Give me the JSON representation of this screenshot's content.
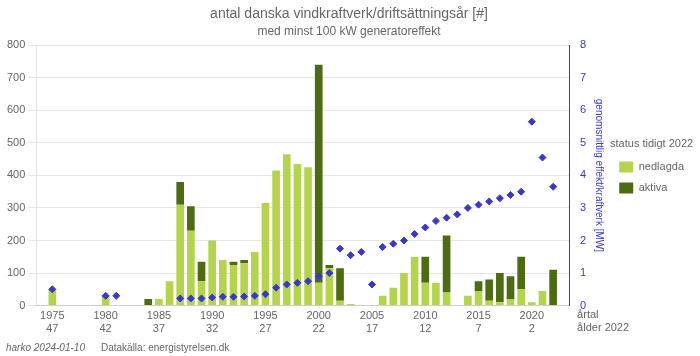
{
  "chart_data": {
    "type": "bar",
    "title": "antal danska vindkraftverk/driftsättningsår [#]",
    "subtitle": "med minst 100 kW generatoreffekt",
    "y2label": "genomsnittlig effekt/kraftverk [MW]",
    "legend_title": "status tidigt 2022",
    "annotations": [
      "årtal",
      "ålder 2022"
    ],
    "footer": [
      "harko 2024-01-10",
      "Datakälla: energistyrelsen.dk"
    ],
    "x": [
      1975,
      1977,
      1979,
      1980,
      1981,
      1984,
      1985,
      1986,
      1987,
      1988,
      1989,
      1990,
      1991,
      1992,
      1993,
      1994,
      1995,
      1996,
      1997,
      1998,
      1999,
      2000,
      2001,
      2002,
      2003,
      2004,
      2005,
      2006,
      2007,
      2008,
      2009,
      2010,
      2011,
      2012,
      2013,
      2014,
      2015,
      2016,
      2017,
      2018,
      2019,
      2020,
      2021,
      2022
    ],
    "series": [
      {
        "name": "nedlagda",
        "color": "#b5d44e",
        "values": [
          50,
          0,
          0,
          30,
          0,
          0,
          20,
          75,
          310,
          230,
          75,
          200,
          140,
          125,
          130,
          165,
          315,
          415,
          465,
          435,
          425,
          70,
          115,
          15,
          5,
          0,
          0,
          30,
          55,
          100,
          150,
          70,
          70,
          40,
          0,
          30,
          45,
          15,
          10,
          20,
          50,
          10,
          45,
          0
        ]
      },
      {
        "name": "aktiva",
        "color": "#4d6b12",
        "values": [
          0,
          0,
          0,
          0,
          0,
          20,
          0,
          0,
          70,
          75,
          60,
          0,
          0,
          10,
          10,
          0,
          0,
          0,
          0,
          0,
          0,
          670,
          10,
          100,
          0,
          0,
          0,
          0,
          0,
          0,
          0,
          80,
          0,
          175,
          0,
          0,
          30,
          65,
          90,
          70,
          100,
          0,
          0,
          110
        ]
      },
      {
        "type": "scatter",
        "axis": "y2",
        "color": "#3939c8",
        "marker": "diamond",
        "values": [
          0.5,
          null,
          null,
          0.3,
          0.3,
          null,
          null,
          null,
          0.22,
          0.22,
          0.22,
          0.25,
          0.27,
          0.27,
          0.28,
          0.3,
          0.35,
          0.55,
          0.65,
          0.7,
          0.75,
          0.9,
          1.0,
          1.75,
          1.55,
          1.65,
          0.65,
          1.8,
          1.9,
          2.0,
          2.2,
          2.4,
          2.6,
          2.7,
          2.8,
          3.0,
          3.1,
          3.2,
          3.3,
          3.4,
          3.5,
          5.65,
          4.55,
          3.65
        ]
      }
    ],
    "stacked": true,
    "xlim": [
      1973.5,
      2023.5
    ],
    "xticks": [
      {
        "value": 1975,
        "label": [
          "1975",
          "47"
        ]
      },
      {
        "value": 1980,
        "label": [
          "1980",
          "42"
        ]
      },
      {
        "value": 1985,
        "label": [
          "1985",
          "37"
        ]
      },
      {
        "value": 1990,
        "label": [
          "1990",
          "32"
        ]
      },
      {
        "value": 1995,
        "label": [
          "1995",
          "27"
        ]
      },
      {
        "value": 2000,
        "label": [
          "2000",
          "22"
        ]
      },
      {
        "value": 2005,
        "label": [
          "2005",
          "17"
        ]
      },
      {
        "value": 2010,
        "label": [
          "2010",
          "12"
        ]
      },
      {
        "value": 2015,
        "label": [
          "2015",
          "7"
        ]
      },
      {
        "value": 2020,
        "label": [
          "2020",
          "2"
        ]
      }
    ],
    "ylim": [
      0,
      800
    ],
    "yticks": [
      0,
      100,
      200,
      300,
      400,
      500,
      600,
      700,
      800
    ],
    "y2lim": [
      0,
      8
    ],
    "y2ticks": [
      0,
      1,
      2,
      3,
      4,
      5,
      6,
      7,
      8
    ],
    "grid": true,
    "legend": "right"
  }
}
